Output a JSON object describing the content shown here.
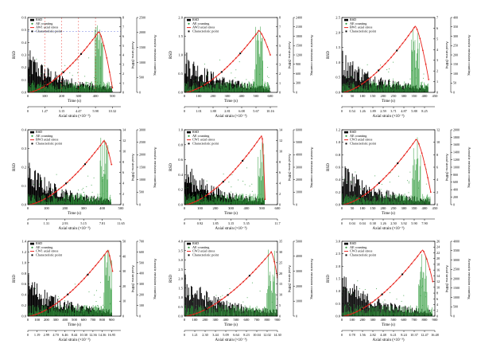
{
  "colors": {
    "rsd": "#000000",
    "ae": "#2e9a3a",
    "stress": "#e8221b",
    "characteristic": "#000000",
    "guide": "#4a5bd8"
  },
  "labels": {
    "rsd_axis": "RSD",
    "stress_axis": "Axial stress (MPa)",
    "ae_axis": "Acoustic emission counting",
    "time_axis": "Time (s)",
    "strain_axis": "Axial strain (×10⁻³)"
  },
  "chart_data": [
    {
      "type": "line",
      "legend": [
        "RSD",
        "AE counting",
        "AW1 axial stress",
        "Characteristic point"
      ],
      "xlabel": "Time (s)",
      "xlim": [
        0,
        550
      ],
      "xticks": [
        "0",
        "100",
        "200",
        "300",
        "400",
        "500"
      ],
      "strain_label": "Axial strain (×10⁻³)",
      "strain_ticks": [
        "0",
        "1.27",
        "3.15",
        "4.47",
        "5.98",
        "10.32"
      ],
      "strain_pos": [
        0,
        100,
        200,
        300,
        400,
        500
      ],
      "ylabel_left": "RSD",
      "ylim_left": [
        0,
        0.6
      ],
      "yticks_left": [
        "0.0",
        "0.1",
        "0.2",
        "0.3",
        "0.4",
        "0.5",
        "0.6"
      ],
      "ylabel_right_stress": "Axial stress (MPa)",
      "ylim_stress": [
        0,
        8
      ],
      "yticks_stress": [
        "0",
        "1",
        "2",
        "3",
        "4",
        "5",
        "6",
        "7",
        "8"
      ],
      "ylabel_right_ae": "Acoustic emission counting",
      "ylim_ae": [
        0,
        2500
      ],
      "yticks_ae": [
        "0",
        "500",
        "1000",
        "1500",
        "2000",
        "2500"
      ],
      "peak_stress": 6.5,
      "peak_time": 420,
      "end_time": 500,
      "end_stress": 0.5
    },
    {
      "type": "line",
      "legend": [
        "RSD",
        "AE counting",
        "AW3 axial stress",
        "Characteristic point"
      ],
      "xlabel": "Time (s)",
      "xlim": [
        0,
        650
      ],
      "xticks": [
        "0",
        "100",
        "200",
        "300",
        "400",
        "500",
        "600"
      ],
      "strain_label": "Axial strain (×10⁻³)",
      "strain_ticks": [
        "0",
        "1.01",
        "1.88",
        "2.81",
        "6.08",
        "5.67",
        "10.16"
      ],
      "strain_pos": [
        0,
        100,
        200,
        300,
        400,
        500,
        600
      ],
      "ylabel_left": "RSD",
      "ylim_left": [
        0,
        2.0
      ],
      "yticks_left": [
        "0.0",
        "0.5",
        "1.0",
        "1.5",
        "2.0"
      ],
      "ylabel_right_stress": "Axial stress (MPa)",
      "ylim_stress": [
        0,
        8
      ],
      "yticks_stress": [
        "0",
        "1",
        "2",
        "3",
        "4",
        "5",
        "6",
        "7",
        "8"
      ],
      "ylabel_right_ae": "Acoustic emission counting",
      "ylim_ae": [
        0,
        2400
      ],
      "yticks_ae": [
        "0",
        "300",
        "600",
        "900",
        "1200",
        "1500",
        "1800",
        "2100",
        "2400"
      ],
      "peak_stress": 6.6,
      "peak_time": 520,
      "end_time": 600,
      "end_stress": 4.0
    },
    {
      "type": "line",
      "legend": [
        "RSD",
        "AE counting",
        "BW1 axial stress",
        "Characteristic point"
      ],
      "xlabel": "Time (s)",
      "xlim": [
        0,
        450
      ],
      "xticks": [
        "0",
        "50",
        "100",
        "150",
        "200",
        "250",
        "300",
        "350",
        "400",
        "450"
      ],
      "strain_label": "Axial strain (×10⁻³)",
      "strain_ticks": [
        "0",
        "0.54",
        "1.26",
        "1.89",
        "2.59",
        "3.71",
        "4.87",
        "5.88",
        "8.25"
      ],
      "strain_pos": [
        0,
        50,
        100,
        150,
        200,
        250,
        300,
        350,
        400
      ],
      "ylabel_left": "RSD",
      "ylim_left": [
        0,
        2.5
      ],
      "yticks_left": [
        "0.0",
        "0.5",
        "1.0",
        "1.5",
        "2.0",
        "2.5"
      ],
      "ylabel_right_stress": "Axial stress (MPa)",
      "ylim_stress": [
        0,
        7
      ],
      "yticks_stress": [
        "0",
        "1",
        "2",
        "3",
        "4",
        "5",
        "6",
        "7"
      ],
      "ylabel_right_ae": "Acoustic emission counting",
      "ylim_ae": [
        0,
        400
      ],
      "yticks_ae": [
        "0",
        "50",
        "100",
        "150",
        "200",
        "250",
        "300",
        "350",
        "400"
      ],
      "peak_stress": 6.2,
      "peak_time": 355,
      "end_time": 420,
      "end_stress": 1.2
    },
    {
      "type": "line",
      "legend": [
        "RSD",
        "AE counting",
        "BW3 axial stress",
        "Characteristic point"
      ],
      "xlabel": "Time (s)",
      "xlim": [
        0,
        500
      ],
      "xticks": [
        "0",
        "100",
        "200",
        "300",
        "400",
        "500"
      ],
      "strain_label": "Axial strain (×10⁻³)",
      "strain_ticks": [
        "0",
        "1.31",
        "2.93",
        "5.15",
        "7.81",
        "11.65"
      ],
      "strain_pos": [
        0,
        100,
        200,
        300,
        400,
        500
      ],
      "ylabel_left": "RSD",
      "ylim_left": [
        0,
        0.4
      ],
      "yticks_left": [
        "0.0",
        "0.1",
        "0.2",
        "0.3",
        "0.4"
      ],
      "ylabel_right_stress": "Axial stress (MPa)",
      "ylim_stress": [
        0,
        14
      ],
      "yticks_stress": [
        "0",
        "2",
        "4",
        "6",
        "8",
        "10",
        "12",
        "14"
      ],
      "ylabel_right_ae": "Acoustic emission counting",
      "ylim_ae": [
        0,
        3000
      ],
      "yticks_ae": [
        "0",
        "500",
        "1000",
        "1500",
        "2000",
        "2500",
        "3000"
      ],
      "peak_stress": 12.0,
      "peak_time": 410,
      "end_time": 450,
      "end_stress": 7.5
    },
    {
      "type": "line",
      "legend": [
        "RSD",
        "AE counting",
        "CW1 axial stress",
        "Characteristic point"
      ],
      "xlabel": "Time (s)",
      "xlim": [
        0,
        600
      ],
      "xticks": [
        "0",
        "100",
        "200",
        "300",
        "400",
        "500",
        "600"
      ],
      "strain_label": "Axial strain (×10⁻³)",
      "strain_ticks": [
        "0",
        "0.92",
        "1.85",
        "3.15",
        "5.35",
        "11.7"
      ],
      "strain_pos": [
        0,
        100,
        200,
        300,
        400,
        600
      ],
      "ylabel_left": "RSD",
      "ylim_left": [
        0,
        1.0
      ],
      "yticks_left": [
        "0.0",
        "0.2",
        "0.4",
        "0.6",
        "0.8",
        "1.0"
      ],
      "ylabel_right_stress": "Axial stress (MPa)",
      "ylim_stress": [
        0,
        14
      ],
      "yticks_stress": [
        "0",
        "2",
        "4",
        "6",
        "8",
        "10",
        "12",
        "14"
      ],
      "ylabel_right_ae": "Acoustic emission counting",
      "ylim_ae": [
        0,
        6000
      ],
      "yticks_ae": [
        "0",
        "1000",
        "2000",
        "3000",
        "4000",
        "5000",
        "6000"
      ],
      "peak_stress": 13.0,
      "peak_time": 500,
      "end_time": 520,
      "end_stress": 1.0
    },
    {
      "type": "line",
      "legend": [
        "RSD",
        "AE counting",
        "CW3 axial stress",
        "Characteristic point"
      ],
      "xlabel": "Time (s)",
      "xlim": [
        0,
        450
      ],
      "xticks": [
        "0",
        "50",
        "100",
        "150",
        "200",
        "250",
        "300",
        "350",
        "400",
        "450"
      ],
      "strain_label": "Axial strain (×10⁻³)",
      "strain_ticks": [
        "0",
        "0.04",
        "0.04",
        "0.38",
        "1.26",
        "2.50",
        "3.92",
        "5.90",
        "7.90"
      ],
      "strain_pos": [
        0,
        50,
        100,
        150,
        200,
        250,
        300,
        350,
        400
      ],
      "ylabel_left": "RSD",
      "ylim_left": [
        0,
        1.2
      ],
      "yticks_left": [
        "0.0",
        "0.2",
        "0.4",
        "0.6",
        "0.8",
        "1.0",
        "1.2"
      ],
      "ylabel_right_stress": "Axial stress (MPa)",
      "ylim_stress": [
        0,
        12
      ],
      "yticks_stress": [
        "0",
        "2",
        "4",
        "6",
        "8",
        "10",
        "12"
      ],
      "ylabel_right_ae": "Acoustic emission counting",
      "ylim_ae": [
        0,
        2000
      ],
      "yticks_ae": [
        "0",
        "200",
        "400",
        "600",
        "800",
        "1000",
        "1200",
        "1400",
        "1600",
        "1800",
        "2000"
      ],
      "peak_stress": 10.5,
      "peak_time": 360,
      "end_time": 430,
      "end_stress": 2.0
    },
    {
      "type": "line",
      "legend": [
        "RSD",
        "AE counting",
        "CW1 axial stress",
        "Characteristic point"
      ],
      "xlabel": "Time (s)",
      "xlim": [
        0,
        1000
      ],
      "xticks": [
        "0",
        "100",
        "200",
        "300",
        "400",
        "500",
        "600",
        "700",
        "800",
        "900"
      ],
      "strain_label": "Axial strain (×10⁻³)",
      "strain_ticks": [
        "0",
        "1.19",
        "2.99",
        "4.70",
        "6.46",
        "8.44",
        "10.30",
        "12.36",
        "14.36",
        "16.95"
      ],
      "strain_pos": [
        0,
        100,
        200,
        300,
        400,
        500,
        600,
        700,
        800,
        900
      ],
      "ylabel_left": "RSD",
      "ylim_left": [
        0,
        1.4
      ],
      "yticks_left": [
        "0.0",
        "0.2",
        "0.4",
        "0.6",
        "0.8",
        "1.0",
        "1.2",
        "1.4"
      ],
      "ylabel_right_stress": "Axial stress (MPa)",
      "ylim_stress": [
        0,
        50
      ],
      "yticks_stress": [
        "0",
        "10",
        "20",
        "30",
        "40",
        "50"
      ],
      "ylabel_right_ae": "Acoustic emission counting",
      "ylim_ae": [
        0,
        700
      ],
      "yticks_ae": [
        "0",
        "100",
        "200",
        "300",
        "400",
        "500",
        "600",
        "700"
      ],
      "peak_stress": 44,
      "peak_time": 860,
      "end_time": 910,
      "end_stress": 30
    },
    {
      "type": "line",
      "legend": [
        "RSD",
        "AE counting",
        "CW3 axial stress",
        "Characteristic point"
      ],
      "xlabel": "Time (s)",
      "xlim": [
        0,
        900
      ],
      "xticks": [
        "0",
        "100",
        "200",
        "300",
        "400",
        "500",
        "600",
        "700",
        "800",
        "900"
      ],
      "strain_label": "Axial strain (×10⁻³)",
      "strain_ticks": [
        "0",
        "1.21",
        "2.30",
        "3.44",
        "5.09",
        "6.64",
        "8.23",
        "10.04",
        "12.02",
        "14.30"
      ],
      "strain_pos": [
        0,
        100,
        200,
        300,
        400,
        500,
        600,
        700,
        800,
        900
      ],
      "ylabel_left": "RSD",
      "ylim_left": [
        0,
        4.0
      ],
      "yticks_left": [
        "0.0",
        "0.5",
        "1.0",
        "1.5",
        "2.0",
        "2.5",
        "3.0",
        "3.5",
        "4.0"
      ],
      "ylabel_right_stress": "Axial stress (MPa)",
      "ylim_stress": [
        0,
        35
      ],
      "yticks_stress": [
        "0",
        "5",
        "10",
        "15",
        "20",
        "25",
        "30",
        "35"
      ],
      "ylabel_right_ae": "Acoustic emission counting",
      "ylim_ae": [
        0,
        5000
      ],
      "yticks_ae": [
        "0",
        "1000",
        "2000",
        "3000",
        "4000",
        "5000"
      ],
      "peak_stress": 30,
      "peak_time": 840,
      "end_time": 900,
      "end_stress": 18
    },
    {
      "type": "line",
      "legend": [
        "RSD",
        "AE counting",
        "CW3 axial stress",
        "Characteristic point"
      ],
      "xlabel": "Time (s)",
      "xlim": [
        0,
        900
      ],
      "xticks": [
        "0",
        "100",
        "200",
        "300",
        "400",
        "500",
        "600",
        "700",
        "800",
        "900"
      ],
      "strain_label": "Axial strain (×10⁻³)",
      "strain_ticks": [
        "0",
        "0.78",
        "1.56",
        "2.82",
        "4.48",
        "6.21",
        "8.24",
        "10.37",
        "12.47",
        "16.48"
      ],
      "strain_pos": [
        0,
        100,
        200,
        300,
        400,
        500,
        600,
        700,
        800,
        900
      ],
      "ylabel_left": "RSD",
      "ylim_left": [
        0,
        3.0
      ],
      "yticks_left": [
        "0.0",
        "0.5",
        "1.0",
        "1.5",
        "2.0",
        "2.5",
        "3.0"
      ],
      "ylabel_right_stress": "Axial stress (MPa)",
      "ylim_stress": [
        0,
        26
      ],
      "yticks_stress": [
        "0",
        "2",
        "4",
        "6",
        "8",
        "10",
        "12",
        "14",
        "16",
        "18",
        "20",
        "22",
        "24",
        "26"
      ],
      "ylabel_right_ae": "Acoustic emission counting",
      "ylim_ae": [
        0,
        4000
      ],
      "yticks_ae": [
        "0",
        "500",
        "1000",
        "1500",
        "2000",
        "2500",
        "3000",
        "3500",
        "4000"
      ],
      "peak_stress": 23,
      "peak_time": 780,
      "end_time": 880,
      "end_stress": 12
    }
  ]
}
